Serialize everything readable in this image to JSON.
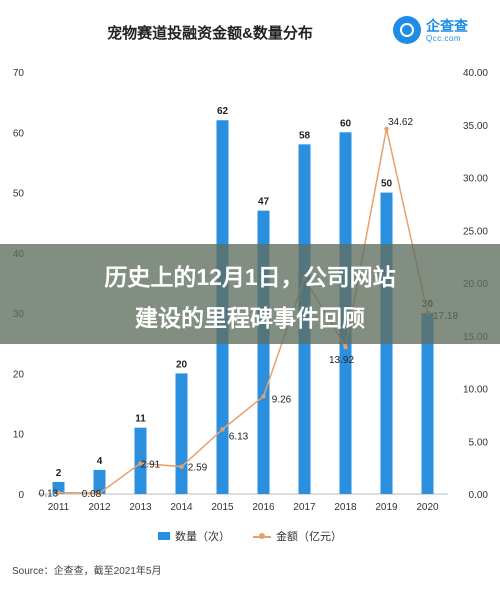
{
  "title": "宠物赛道投融资金额&数量分布",
  "logo": {
    "name": "企查查",
    "url": "Qcc.com",
    "icon": "magnifier-logo-icon"
  },
  "banner": {
    "line1": "历史上的12月1日，公司网站",
    "line2": "建设的里程碑事件回顾"
  },
  "source": "Source：企查查，截至2021年5月",
  "colors": {
    "bar": "#2b8fe0",
    "line": "#e8a06a"
  },
  "chart_data": {
    "type": "bar",
    "categories": [
      "2011",
      "2012",
      "2013",
      "2014",
      "2015",
      "2016",
      "2017",
      "2018",
      "2019",
      "2020"
    ],
    "series": [
      {
        "name": "数量（次）",
        "type": "bar",
        "axis": "left",
        "values": [
          2,
          4,
          11,
          20,
          62,
          47,
          58,
          60,
          50,
          30
        ],
        "labels": [
          "2",
          "4",
          "11",
          "20",
          "62",
          "47",
          "58",
          "60",
          "50",
          "30"
        ]
      },
      {
        "name": "金额（亿元）",
        "type": "line",
        "axis": "right",
        "values": [
          0.13,
          0.08,
          2.91,
          2.59,
          6.13,
          9.26,
          20.5,
          13.92,
          34.62,
          17.18
        ],
        "labels": [
          "0.13",
          "0.08",
          "2.91",
          "2.59",
          "6.13",
          "9.26",
          "",
          "13.92",
          "34.62",
          "17.18"
        ]
      }
    ],
    "yleft": {
      "ticks": [
        "0",
        "10",
        "20",
        "30",
        "40",
        "50",
        "60",
        "70"
      ],
      "ylim": [
        0,
        70
      ]
    },
    "yright": {
      "ticks": [
        "0.00",
        "5.00",
        "10.00",
        "15.00",
        "20.00",
        "25.00",
        "30.00",
        "35.00",
        "40.00"
      ],
      "ylim": [
        0,
        40
      ]
    },
    "grid": false,
    "legend": "bottom"
  }
}
